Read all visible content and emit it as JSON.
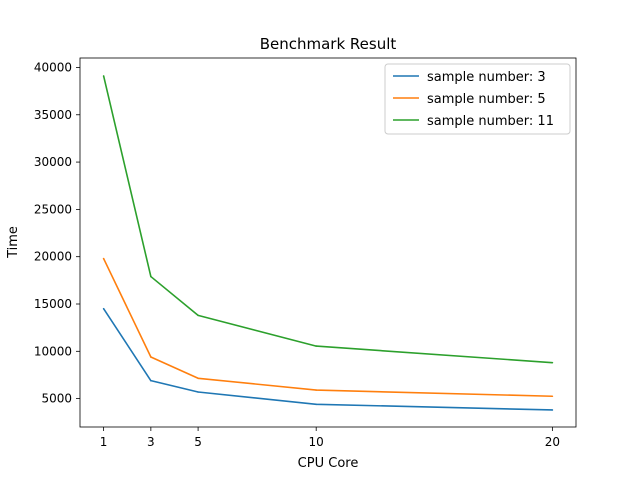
{
  "chart_data": {
    "type": "line",
    "title": "Benchmark Result",
    "xlabel": "CPU Core",
    "ylabel": "Time",
    "x": [
      1,
      3,
      5,
      10,
      20
    ],
    "x_ticks": [
      "1",
      "3",
      "5",
      "10",
      "20"
    ],
    "y_ticks": [
      "5000",
      "10000",
      "15000",
      "20000",
      "25000",
      "30000",
      "35000",
      "40000"
    ],
    "xlim": [
      0,
      21
    ],
    "ylim": [
      2000,
      41000
    ],
    "grid": false,
    "legend_position": "top-right",
    "series": [
      {
        "name": "sample number: 3",
        "color": "#1f77b4",
        "values": [
          14500,
          6900,
          5700,
          4400,
          3800
        ]
      },
      {
        "name": "sample number: 5",
        "color": "#ff7f0e",
        "values": [
          19800,
          9400,
          7150,
          5900,
          5250
        ]
      },
      {
        "name": "sample number: 11",
        "color": "#2ca02c",
        "values": [
          39100,
          17900,
          13800,
          10550,
          8800
        ]
      }
    ]
  }
}
